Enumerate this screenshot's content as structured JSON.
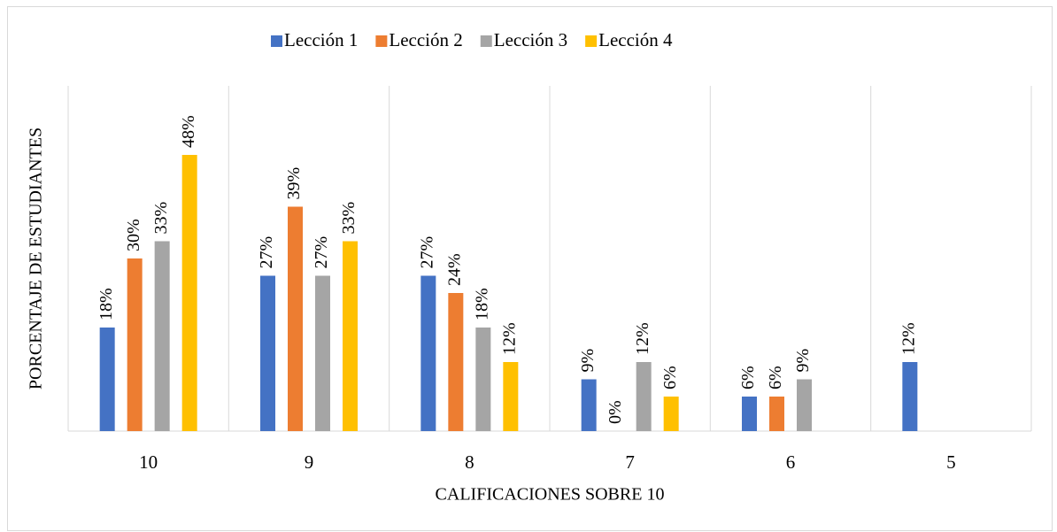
{
  "chart_data": {
    "type": "bar",
    "x_label": "CALIFICACIONES SOBRE 10",
    "y_label": "PORCENTAJE DE ESTUDIANTES",
    "categories": [
      "10",
      "9",
      "8",
      "7",
      "6",
      "5"
    ],
    "series": [
      {
        "name": "Lección 1",
        "color": "#4472c4",
        "values": [
          18,
          27,
          27,
          9,
          6,
          12
        ],
        "value_labels": [
          "18%",
          "27%",
          "27%",
          "9%",
          "6%",
          "12%"
        ]
      },
      {
        "name": "Lección 2",
        "color": "#ed7d31",
        "values": [
          30,
          39,
          24,
          0,
          6,
          null
        ],
        "value_labels": [
          "30%",
          "39%",
          "24%",
          "0%",
          "6%",
          null
        ]
      },
      {
        "name": "Lección 3",
        "color": "#a5a5a5",
        "values": [
          33,
          27,
          18,
          12,
          9,
          null
        ],
        "value_labels": [
          "33%",
          "27%",
          "18%",
          "12%",
          "9%",
          null
        ]
      },
      {
        "name": "Lección 4",
        "color": "#ffc000",
        "values": [
          48,
          33,
          12,
          6,
          null,
          null
        ],
        "value_labels": [
          "48%",
          "33%",
          "12%",
          "6%",
          null,
          null
        ]
      }
    ],
    "ylim": [
      0,
      60
    ],
    "legend": "top"
  }
}
